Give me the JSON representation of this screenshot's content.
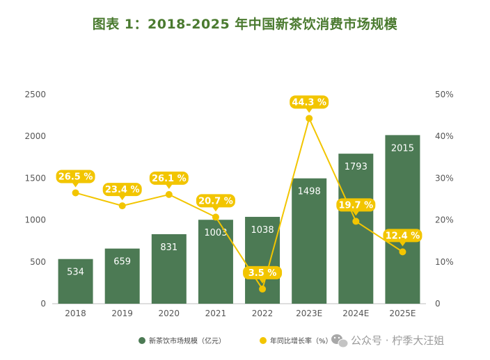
{
  "title": "图表 1：2018-2025 年中国新茶饮消费市场规模",
  "chart_data": {
    "type": "bar+line",
    "title": "图表 1：2018-2025 年中国新茶饮消费市场规模",
    "categories": [
      "2018",
      "2019",
      "2020",
      "2021",
      "2022",
      "2023E",
      "2024E",
      "2025E"
    ],
    "series": [
      {
        "name": "新茶饮市场规模（亿元）",
        "type": "bar",
        "axis": "left",
        "values": [
          534,
          659,
          831,
          1003,
          1038,
          1498,
          1793,
          2015
        ],
        "labels": [
          "534",
          "659",
          "831",
          "1003",
          "1038",
          "1498",
          "1793",
          "2015"
        ],
        "color": "#4c7a54"
      },
      {
        "name": "年同比增长率（%）",
        "type": "line",
        "axis": "right",
        "values": [
          26.5,
          23.4,
          26.1,
          20.7,
          3.5,
          44.3,
          19.7,
          12.4
        ],
        "labels": [
          "26.5 %",
          "23.4 %",
          "26.1 %",
          "20.7 %",
          "3.5 %",
          "44.3 %",
          "19.7 %",
          "12.4 %"
        ],
        "color": "#f2c500"
      }
    ],
    "y_left": {
      "min": 0,
      "max": 2500,
      "ticks": [
        "0",
        "500",
        "1000",
        "1500",
        "2000",
        "2500"
      ]
    },
    "y_right": {
      "min": 0,
      "max": 50,
      "ticks": [
        "0",
        "10%",
        "20%",
        "30%",
        "40%",
        "50%"
      ]
    },
    "legend_position": "bottom"
  },
  "legend": {
    "bar_label": "新茶饮市场规模（亿元）",
    "line_label": "年同比增长率（%）"
  },
  "watermark": "公众号 · 柠季大汪姐"
}
